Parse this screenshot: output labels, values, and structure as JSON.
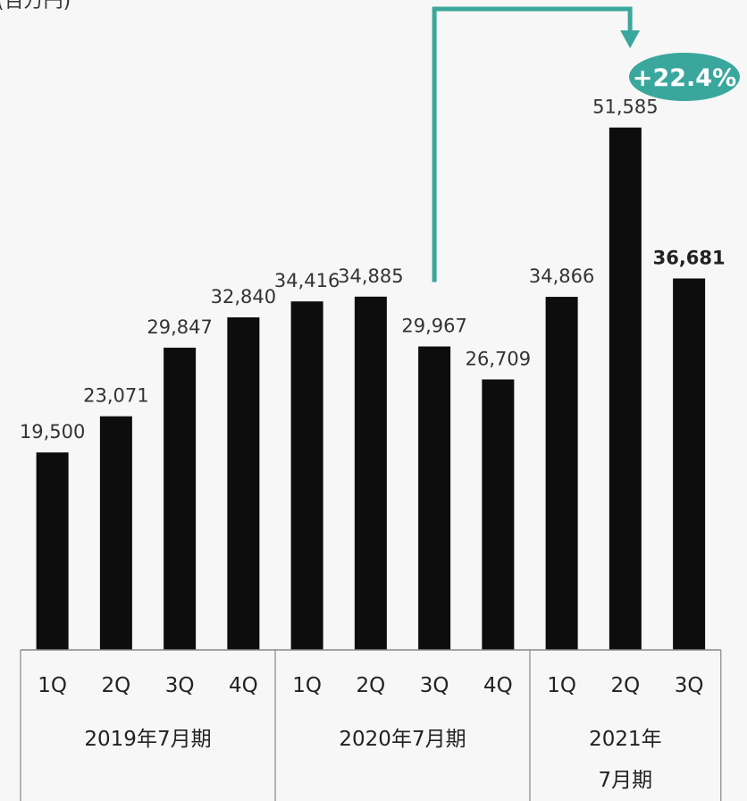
{
  "corner_text": "(百万円)",
  "chart_data": {
    "type": "bar",
    "unit": "",
    "categories": [
      "1Q",
      "2Q",
      "3Q",
      "4Q",
      "1Q",
      "2Q",
      "3Q",
      "4Q",
      "1Q",
      "2Q",
      "3Q"
    ],
    "values": [
      19500,
      23071,
      29847,
      32840,
      34416,
      34885,
      29967,
      26709,
      34866,
      51585,
      36681
    ],
    "value_labels": [
      "19,500",
      "23,071",
      "29,847",
      "32,840",
      "34,416",
      "34,885",
      "29,967",
      "26,709",
      "34,866",
      "51,585",
      "36,681"
    ],
    "groups": [
      {
        "label_lines": [
          "2019年7月期"
        ],
        "count": 4
      },
      {
        "label_lines": [
          "2020年7月期"
        ],
        "count": 4
      },
      {
        "label_lines": [
          "2021年",
          "7月期"
        ],
        "count": 3
      }
    ],
    "highlight_index": 10,
    "bar_color": "#0d0d0d",
    "comparison": {
      "from_index": 6,
      "to_index": 10,
      "label": "+22.4%",
      "color": "#3aa79c"
    },
    "ylim": [
      0,
      58000
    ],
    "grid": false,
    "title": "",
    "xlabel": "",
    "ylabel": ""
  }
}
